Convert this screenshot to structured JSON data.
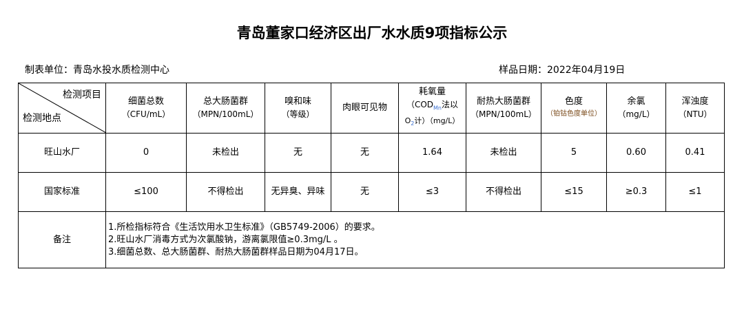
{
  "title": "青岛董家口经济区出厂水水质9项指标公示",
  "unit": "制表单位：青岛水投水质检测中心",
  "date": "样品日期：2022年04月19日",
  "corner": {
    "item": "检测项目",
    "place": "检测地点"
  },
  "headers": [
    {
      "name": "细菌总数",
      "unit": "（CFU/mL）"
    },
    {
      "name": "总大肠菌群",
      "unit": "（MPN/100mL）"
    },
    {
      "name": "嗅和味",
      "unit": "（等级）"
    },
    {
      "name": "肉眼可见物",
      "unit": ""
    },
    {
      "name": "耗氧量",
      "u1": "（COD",
      "sub1": "Mn",
      "u2": "法以",
      "u3": "O",
      "sub2": "2",
      "u4": "计）（mg/L）"
    },
    {
      "name": "耐热大肠菌群",
      "unit": "（MPN/100mL）"
    },
    {
      "name": "色度",
      "unit": "（铂钴色度单位）"
    },
    {
      "name": "余氯",
      "unit": "（mg/L）"
    },
    {
      "name": "浑浊度",
      "unit": "（NTU）"
    }
  ],
  "rows": [
    {
      "label": "旺山水厂",
      "values": [
        "0",
        "未检出",
        "无",
        "无",
        "1.64",
        "未检出",
        "5",
        "0.60",
        "0.41"
      ]
    },
    {
      "label": "国家标准",
      "values": [
        "≤100",
        "不得检出",
        "无异臭、异味",
        "无",
        "≤3",
        "不得检出",
        "≤15",
        "≥0.3",
        "≤1"
      ]
    }
  ],
  "notes": {
    "label": "备注",
    "lines": [
      "1.所检指标符合《生活饮用水卫生标准》（GB5749-2006）的要求。",
      "2.旺山水厂消毒方式为次氯酸钠，游离氯限值≥0.3mg/L 。",
      "3.细菌总数、总大肠菌群、耐热大肠菌群样品日期为04月17日。"
    ]
  }
}
